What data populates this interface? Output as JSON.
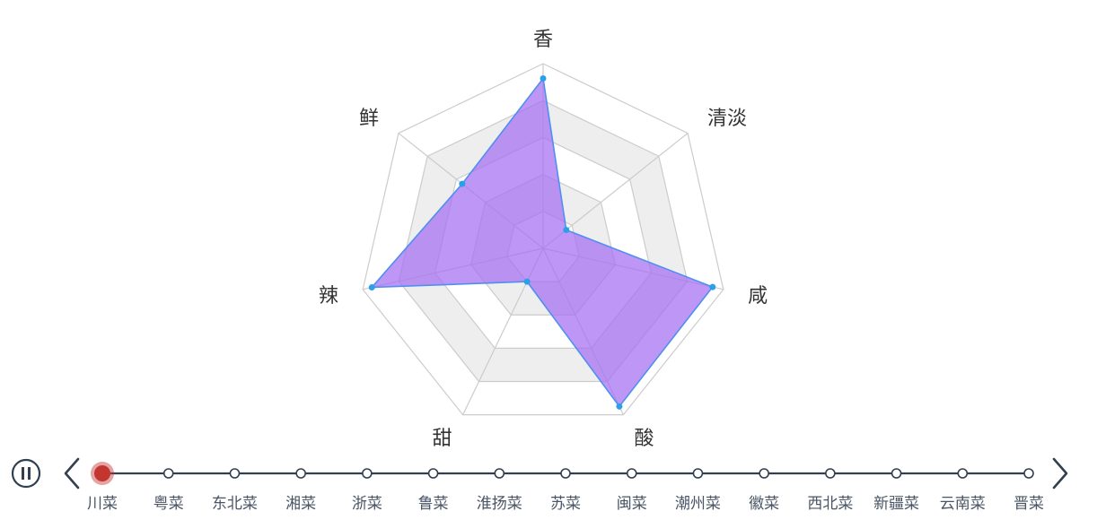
{
  "chart_data": {
    "type": "radar",
    "indicators": [
      "香",
      "清淡",
      "咸",
      "酸",
      "甜",
      "辣",
      "鲜"
    ],
    "max": 100,
    "split_number": 5,
    "series": [
      {
        "values": [
          92,
          16,
          94,
          95,
          20,
          95,
          56
        ]
      }
    ],
    "colors": {
      "fill": "#a56ef2",
      "line": "#4f8ff0",
      "point": "#2aa0e8",
      "grid": "#cccccc",
      "band": "#eeeeee"
    }
  },
  "timeline": {
    "items": [
      "川菜",
      "粤菜",
      "东北菜",
      "湘菜",
      "浙菜",
      "鲁菜",
      "淮扬菜",
      "苏菜",
      "闽菜",
      "潮州菜",
      "徽菜",
      "西北菜",
      "新疆菜",
      "云南菜",
      "晋菜"
    ],
    "current_index": 0,
    "colors": {
      "line": "#304050",
      "active": "#c23531"
    },
    "play_icon": "pause-icon",
    "prev_icon": "chevron-left-icon",
    "next_icon": "chevron-right-icon"
  }
}
